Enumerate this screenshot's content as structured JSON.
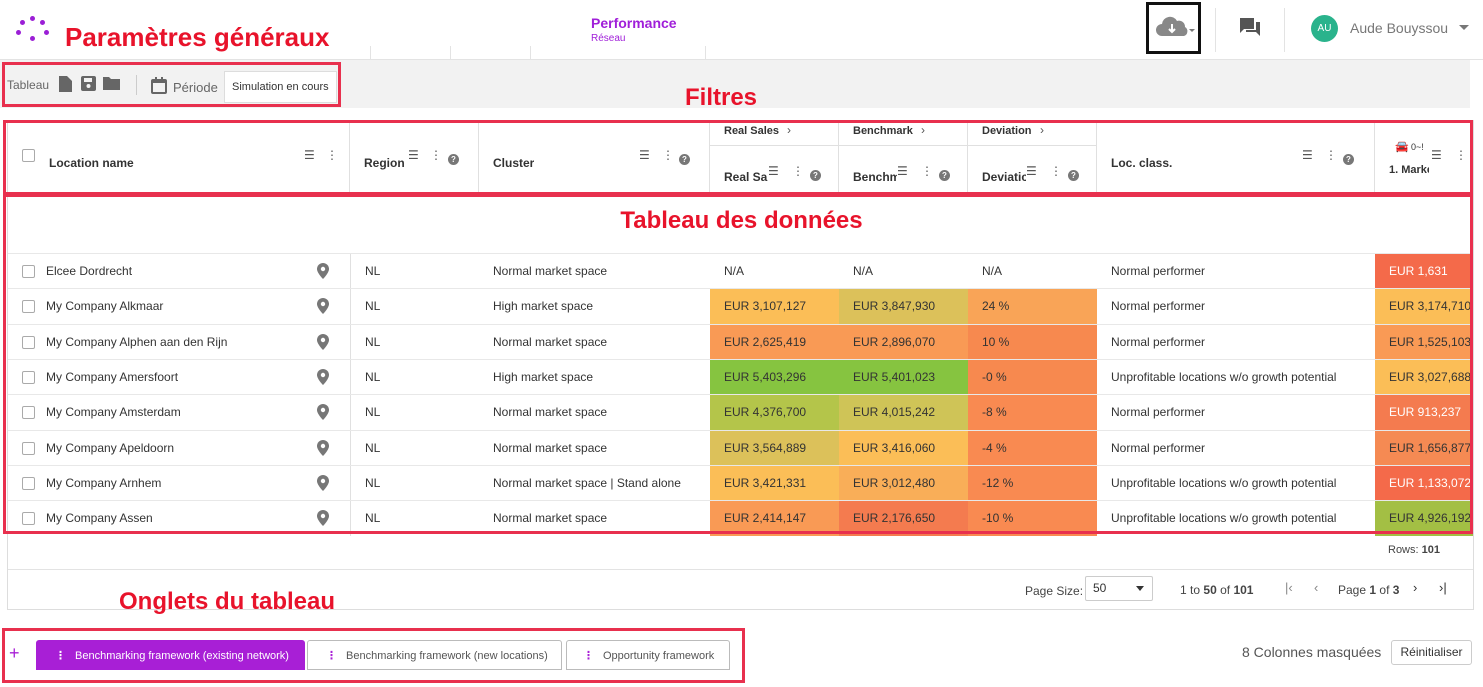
{
  "header": {
    "annotation_parametres": "Paramètres généraux",
    "title": "Performance",
    "subtitle": "Réseau",
    "user_initials": "AU",
    "user_name": "Aude Bouyssou"
  },
  "toolbar": {
    "tableau_label": "Tableau",
    "periode_label": "Période",
    "simulation_value": "Simulation en cours"
  },
  "annotations": {
    "filtres": "Filtres",
    "tableau_donnees": "Tableau des données",
    "onglets": "Onglets du tableau"
  },
  "grid": {
    "columns": {
      "location": "Location name",
      "region": "Region",
      "cluster": "Cluster",
      "real_sales_group": "Real Sales",
      "real_sales": "Real Sal",
      "benchmark_group": "Benchmark",
      "benchmark": "Benchm",
      "deviation_group": "Deviation",
      "deviation": "Deviatic",
      "loc_class": "Loc. class.",
      "market_range": "0~!",
      "market": "1. Marke"
    },
    "rows": [
      {
        "location": "Elcee Dordrecht",
        "region": "NL",
        "cluster": "Normal market space",
        "real_sales": "N/A",
        "benchmark": "N/A",
        "deviation": "N/A",
        "loc_class": "Normal performer",
        "market": "EUR 1,631"
      },
      {
        "location": "My Company Alkmaar",
        "region": "NL",
        "cluster": "High market space",
        "real_sales": "EUR 3,107,127",
        "benchmark": "EUR 3,847,930",
        "deviation": "24 %",
        "loc_class": "Normal performer",
        "market": "EUR 3,174,710"
      },
      {
        "location": "My Company Alphen aan den Rijn",
        "region": "NL",
        "cluster": "Normal market space",
        "real_sales": "EUR 2,625,419",
        "benchmark": "EUR 2,896,070",
        "deviation": "10 %",
        "loc_class": "Normal performer",
        "market": "EUR 1,525,103"
      },
      {
        "location": "My Company Amersfoort",
        "region": "NL",
        "cluster": "High market space",
        "real_sales": "EUR 5,403,296",
        "benchmark": "EUR 5,401,023",
        "deviation": "-0 %",
        "loc_class": "Unprofitable locations w/o growth potential",
        "market": "EUR 3,027,688"
      },
      {
        "location": "My Company Amsterdam",
        "region": "NL",
        "cluster": "Normal market space",
        "real_sales": "EUR 4,376,700",
        "benchmark": "EUR 4,015,242",
        "deviation": "-8 %",
        "loc_class": "Normal performer",
        "market": "EUR 913,237"
      },
      {
        "location": "My Company Apeldoorn",
        "region": "NL",
        "cluster": "Normal market space",
        "real_sales": "EUR 3,564,889",
        "benchmark": "EUR 3,416,060",
        "deviation": "-4 %",
        "loc_class": "Normal performer",
        "market": "EUR 1,656,877"
      },
      {
        "location": "My Company Arnhem",
        "region": "NL",
        "cluster": "Normal market space | Stand alone",
        "real_sales": "EUR 3,421,331",
        "benchmark": "EUR 3,012,480",
        "deviation": "-12 %",
        "loc_class": "Unprofitable locations w/o growth potential",
        "market": "EUR 1,133,072"
      },
      {
        "location": "My Company Assen",
        "region": "NL",
        "cluster": "Normal market space",
        "real_sales": "EUR 2,414,147",
        "benchmark": "EUR 2,176,650",
        "deviation": "-10 %",
        "loc_class": "Unprofitable locations w/o growth potential",
        "market": "EUR 4,926,192"
      }
    ],
    "cell_colors": [
      {
        "real_sales": "#ffffff",
        "benchmark": "#ffffff",
        "deviation": "#ffffff",
        "market": "#f46a4a"
      },
      {
        "real_sales": "#fbbe57",
        "benchmark": "#dcc15a",
        "deviation": "#f9a457",
        "market": "#fbbe57"
      },
      {
        "real_sales": "#f99a55",
        "benchmark": "#f99a55",
        "deviation": "#f7894f",
        "market": "#f99a55"
      },
      {
        "real_sales": "#86c440",
        "benchmark": "#86c440",
        "deviation": "#f7894f",
        "market": "#fbbe57"
      },
      {
        "real_sales": "#b4c54a",
        "benchmark": "#cfc457",
        "deviation": "#f98a51",
        "market": "#f47b4f"
      },
      {
        "real_sales": "#dcc15a",
        "benchmark": "#fbbe57",
        "deviation": "#f98a51",
        "market": "#f58a53"
      },
      {
        "real_sales": "#fbbe57",
        "benchmark": "#f9ae58",
        "deviation": "#f98a51",
        "market": "#f46a4a"
      },
      {
        "real_sales": "#f99a55",
        "benchmark": "#f47b4f",
        "deviation": "#f98a51",
        "market": "#a3bf44"
      }
    ],
    "rows_label": "Rows:",
    "rows_count": "101",
    "page_size_label": "Page Size:",
    "page_size_value": "50",
    "range_from": "1",
    "range_to": "50",
    "range_of": "of",
    "range_total": "101",
    "page_label": "Page",
    "page_current": "1",
    "page_of": "of",
    "page_total": "3",
    "range_to_word": "to"
  },
  "tabs": {
    "items": [
      "Benchmarking framework (existing network)",
      "Benchmarking framework (new locations)",
      "Opportunity framework"
    ],
    "hidden_columns": "8 Colonnes masquées",
    "reset_label": "Réinitialiser"
  },
  "colors": {
    "accent": "#a81fd6",
    "annotation_red": "#e8132b",
    "box_red": "#e8304e",
    "avatar": "#2ab38c"
  }
}
